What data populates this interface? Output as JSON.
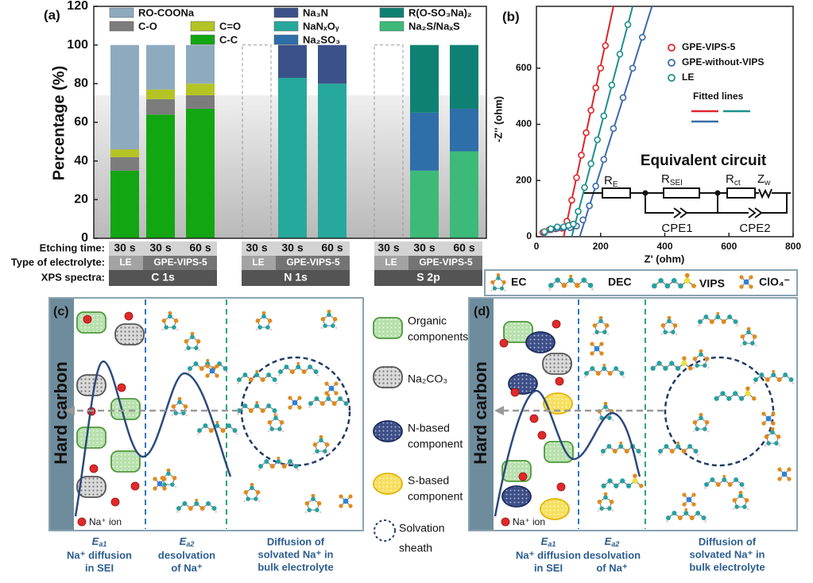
{
  "chart_data": [
    {
      "type": "bar",
      "stacked": true,
      "ylabel": "Percentage (%)",
      "ylim": [
        0,
        120
      ],
      "yticks": [
        0,
        20,
        40,
        60,
        80,
        100,
        120
      ],
      "categories": [
        "30 s",
        "30 s",
        "60 s",
        "30 s",
        "30 s",
        "60 s",
        "30 s",
        "30 s",
        "60 s"
      ],
      "row_labels": [
        "Etching time:",
        "Type of electrolyte:",
        "XPS spectra:"
      ],
      "electrolytes": [
        "LE",
        "GPE-VIPS-5",
        "LE",
        "GPE-VIPS-5",
        "LE",
        "GPE-VIPS-5"
      ],
      "spectra": [
        "C 1s",
        "N 1s",
        "S 2p"
      ],
      "series": [
        {
          "name": "C-C",
          "color": "#12a612",
          "values": [
            35,
            64,
            67,
            null,
            null,
            null,
            null,
            null,
            null
          ]
        },
        {
          "name": "C-O",
          "color": "#7c7c7c",
          "values": [
            7,
            8,
            7,
            null,
            null,
            null,
            null,
            null,
            null
          ]
        },
        {
          "name": "C=O",
          "color": "#b4c424",
          "values": [
            4,
            5,
            6,
            null,
            null,
            null,
            null,
            null,
            null
          ]
        },
        {
          "name": "RO-COONa",
          "color": "#8eaabf",
          "values": [
            54,
            23,
            20,
            null,
            null,
            null,
            null,
            null,
            null
          ]
        },
        {
          "name": "NaNₓOᵧ",
          "color": "#27a89c",
          "values": [
            null,
            null,
            null,
            null,
            83,
            80,
            null,
            null,
            null
          ]
        },
        {
          "name": "Na₃N",
          "color": "#3b5189",
          "values": [
            null,
            null,
            null,
            null,
            17,
            20,
            null,
            null,
            null
          ]
        },
        {
          "name": "Na₂S/NaₓS",
          "color": "#3dba78",
          "values": [
            null,
            null,
            null,
            null,
            null,
            null,
            null,
            35,
            45
          ]
        },
        {
          "name": "Na₂SO₃",
          "color": "#2f6fa9",
          "values": [
            null,
            null,
            null,
            null,
            null,
            null,
            null,
            30,
            22
          ]
        },
        {
          "name": "R(O-SO₃Na)₂",
          "color": "#0f8174",
          "values": [
            null,
            null,
            null,
            null,
            null,
            null,
            null,
            35,
            33
          ]
        }
      ]
    },
    {
      "type": "scatter",
      "xlabel": "Z' (ohm)",
      "ylabel": "-Z'' (ohm)",
      "xlim": [
        0,
        800
      ],
      "xticks": [
        0,
        200,
        400,
        600,
        800
      ],
      "ylim": [
        0,
        820
      ],
      "yticks": [
        0,
        200,
        400,
        600
      ],
      "series": [
        {
          "name": "GPE-VIPS-5",
          "color": "#e0252a",
          "x": [
            20,
            40,
            60,
            80,
            95,
            110,
            125,
            140,
            155,
            170,
            185,
            200,
            215
          ],
          "values": [
            15,
            25,
            28,
            30,
            55,
            130,
            210,
            290,
            370,
            450,
            530,
            600,
            680
          ]
        },
        {
          "name": "GPE-without-VIPS",
          "color": "#3b6aa8",
          "x": [
            25,
            45,
            65,
            85,
            105,
            125,
            145,
            165,
            185,
            210,
            240,
            270,
            300,
            330
          ],
          "values": [
            15,
            25,
            30,
            32,
            32,
            38,
            60,
            110,
            180,
            275,
            385,
            495,
            600,
            710
          ]
        },
        {
          "name": "LE",
          "color": "#1d8f8a",
          "x": [
            25,
            45,
            65,
            85,
            100,
            115,
            130,
            150,
            170,
            190,
            210,
            235,
            260,
            285
          ],
          "values": [
            18,
            28,
            35,
            35,
            40,
            45,
            90,
            175,
            260,
            345,
            430,
            540,
            650,
            755
          ]
        }
      ],
      "fits_label": "Fitted lines",
      "fits": [
        {
          "color": "#e0252a",
          "x": [
            85,
            240
          ],
          "values": [
            0,
            820
          ]
        },
        {
          "color": "#1d8f8a",
          "x": [
            110,
            300
          ],
          "values": [
            0,
            820
          ]
        },
        {
          "color": "#3b6aa8",
          "x": [
            135,
            360
          ],
          "values": [
            0,
            820
          ]
        }
      ]
    }
  ],
  "panels": [
    "(a)",
    "(b)",
    "(c)",
    "(d)"
  ],
  "circuit": {
    "title": "Equivalent circuit",
    "elements": [
      {
        "symbol": "R",
        "sub": "E"
      },
      {
        "symbol": "R",
        "sub": "SEI"
      },
      {
        "symbol": "R",
        "sub": "ct"
      },
      {
        "symbol": "Z",
        "sub": "w"
      }
    ],
    "cpe": [
      "CPE1",
      "CPE2"
    ]
  },
  "molecule_legend": [
    "EC",
    "DEC",
    "VIPS",
    "ClO₄⁻"
  ],
  "species_legend": [
    {
      "lines": [
        "Organic",
        "components"
      ]
    },
    {
      "lines": [
        "Na₂CO₃"
      ]
    },
    {
      "lines": [
        "N-based",
        "component"
      ]
    },
    {
      "lines": [
        "S-based",
        "component"
      ]
    },
    {
      "lines": [
        "Solvation",
        "sheath"
      ]
    }
  ],
  "diagram": {
    "electrode": "Hard carbon",
    "ion": "Na⁺ ion",
    "regions": [
      {
        "symbol": "E",
        "sub": "a1",
        "lines": [
          "Na⁺ diffusion",
          "in SEI"
        ]
      },
      {
        "symbol": "E",
        "sub": "a2",
        "lines": [
          "desolvation",
          "of Na⁺"
        ]
      },
      {
        "lines": [
          "Diffusion of",
          "solvated  Na⁺ in",
          "bulk electrolyte"
        ]
      }
    ]
  }
}
